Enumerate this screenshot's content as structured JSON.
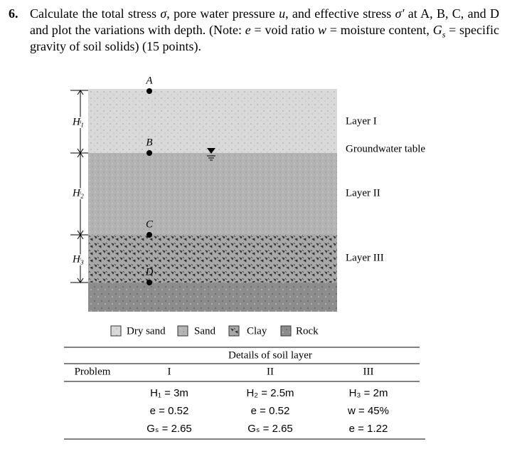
{
  "question": {
    "number": "6.",
    "segments": [
      {
        "text": "Calculate the total stress "
      },
      {
        "text": "σ",
        "style": "italic"
      },
      {
        "text": ", pore water pressure "
      },
      {
        "text": "u",
        "style": "italic"
      },
      {
        "text": ", and effective stress "
      },
      {
        "text": "σ′",
        "style": "italic"
      },
      {
        "text": " at A, B, C, and D and plot the variations with depth. (Note: "
      },
      {
        "text": "e",
        "style": "italic"
      },
      {
        "text": " = void ratio "
      },
      {
        "text": "w",
        "style": "italic"
      },
      {
        "text": " = moisture content, "
      },
      {
        "text": "G",
        "style": "italic"
      },
      {
        "text": "s",
        "style": "sub"
      },
      {
        "text": " = specific gravity of soil solids) (15 points)."
      }
    ]
  },
  "figure": {
    "points": [
      "A",
      "B",
      "C",
      "D"
    ],
    "heights": [
      "H₁",
      "H₂",
      "H₃"
    ],
    "layer_labels": [
      "Layer I",
      "Groundwater table",
      "Layer II",
      "Layer III"
    ],
    "legend": [
      "Dry sand",
      "Sand",
      "Clay",
      "Rock"
    ]
  },
  "table": {
    "caption": "Details of soil layer",
    "header": [
      "Problem",
      "I",
      "II",
      "III"
    ],
    "rows": [
      [
        "H₁ = 3m",
        "H₂ = 2.5m",
        "H₃ = 2m"
      ],
      [
        "e = 0.52",
        "e = 0.52",
        "w = 45%"
      ],
      [
        "Gₛ = 2.65",
        "Gₛ = 2.65",
        "e = 1.22"
      ]
    ]
  }
}
